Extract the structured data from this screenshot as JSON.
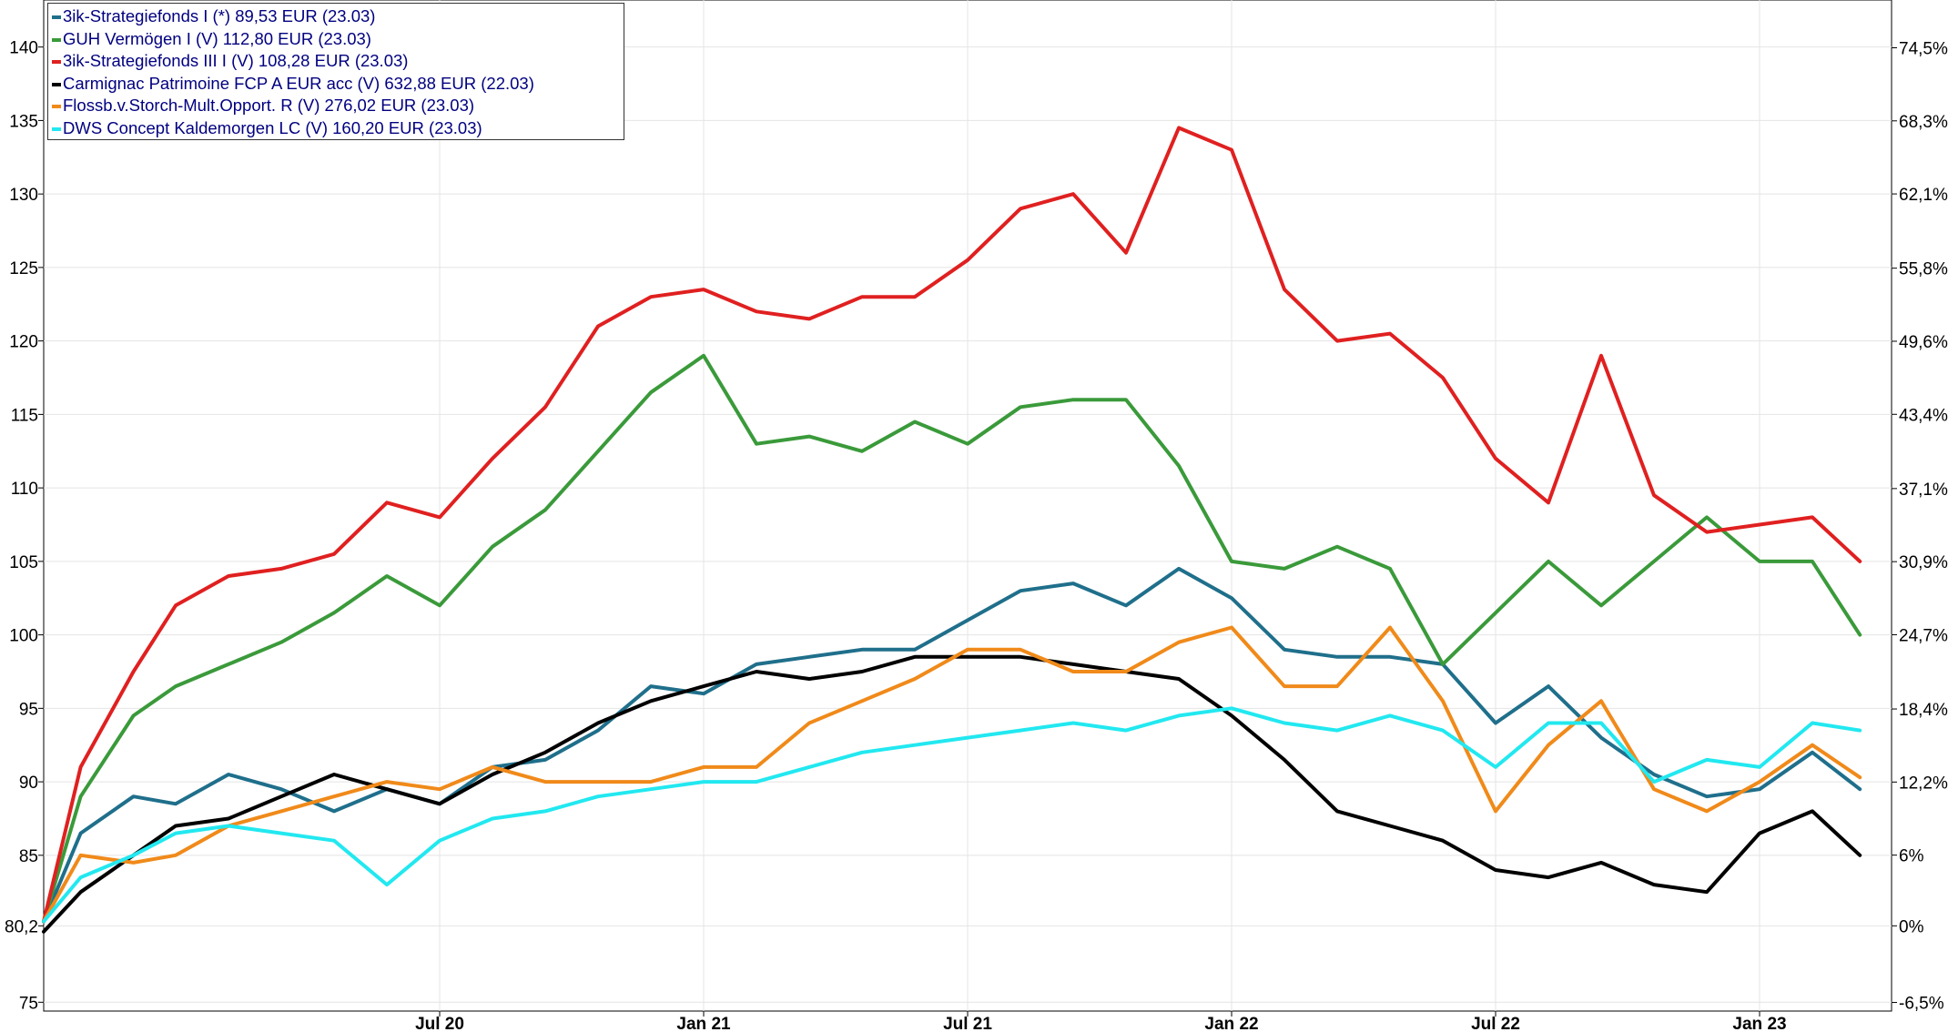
{
  "chart_data": {
    "type": "line",
    "title": "",
    "xlabel": "",
    "ylabel": "",
    "x_tick_labels": [
      "Jul 20",
      "Jan 21",
      "Jul 21",
      "Jan 22",
      "Jul 22",
      "Jan 23"
    ],
    "x_ticks": [
      2020.5,
      2021.0,
      2021.5,
      2022.0,
      2022.5,
      2023.0
    ],
    "xlim": [
      2019.75,
      2023.25
    ],
    "ylim": [
      74.4,
      143.2
    ],
    "y_left_ticks": [
      140,
      135,
      130,
      125,
      120,
      115,
      110,
      105,
      100,
      95,
      90,
      85,
      80.2,
      75
    ],
    "y_left_tick_labels": [
      "140",
      "135",
      "130",
      "125",
      "120",
      "115",
      "110",
      "105",
      "100",
      "95",
      "90",
      "85",
      "80,2",
      "75"
    ],
    "y_right_ticks": [
      74.5,
      68.3,
      62.1,
      55.8,
      49.6,
      43.4,
      37.1,
      30.9,
      24.7,
      18.4,
      12.2,
      6,
      0,
      -6.5
    ],
    "y_right_tick_labels": [
      "74,5%",
      "68,3%",
      "62,1%",
      "55,8%",
      "49,6%",
      "43,4%",
      "37,1%",
      "30,9%",
      "24,7%",
      "18,4%",
      "12,2%",
      "6%",
      "0%",
      "-6,5%"
    ],
    "y_right_base": 80.2,
    "grid": true,
    "legend_position": "top-left",
    "series": [
      {
        "name": "3ik-Strategiefonds I (*) 89,53 EUR (23.03)",
        "color": "#1f6f8b",
        "x": [
          2019.75,
          2019.82,
          2019.92,
          2020.0,
          2020.1,
          2020.2,
          2020.3,
          2020.4,
          2020.5,
          2020.6,
          2020.7,
          2020.8,
          2020.9,
          2021.0,
          2021.1,
          2021.2,
          2021.3,
          2021.4,
          2021.5,
          2021.6,
          2021.7,
          2021.8,
          2021.9,
          2022.0,
          2022.1,
          2022.2,
          2022.3,
          2022.4,
          2022.5,
          2022.6,
          2022.7,
          2022.8,
          2022.9,
          2023.0,
          2023.1,
          2023.19
        ],
        "y": [
          80.5,
          86.5,
          89.0,
          88.5,
          90.5,
          89.5,
          88.0,
          89.5,
          88.5,
          91.0,
          91.5,
          93.5,
          96.5,
          96.0,
          98.0,
          98.5,
          99.0,
          99.0,
          101.0,
          103.0,
          103.5,
          102.0,
          104.5,
          102.5,
          99.0,
          98.5,
          98.5,
          98.0,
          94.0,
          96.5,
          93.0,
          90.5,
          89.0,
          89.5,
          92.0,
          89.5
        ]
      },
      {
        "name": "GUH Vermögen I (V) 112,80 EUR (23.03)",
        "color": "#3a9a3a",
        "x": [
          2019.75,
          2019.82,
          2019.92,
          2020.0,
          2020.1,
          2020.2,
          2020.3,
          2020.4,
          2020.5,
          2020.6,
          2020.7,
          2020.8,
          2020.9,
          2021.0,
          2021.1,
          2021.2,
          2021.3,
          2021.4,
          2021.5,
          2021.6,
          2021.7,
          2021.8,
          2021.9,
          2022.0,
          2022.1,
          2022.2,
          2022.3,
          2022.4,
          2022.5,
          2022.6,
          2022.7,
          2022.8,
          2022.9,
          2023.0,
          2023.1,
          2023.19
        ],
        "y": [
          80.5,
          89.0,
          94.5,
          96.5,
          98.0,
          99.5,
          101.5,
          104.0,
          102.0,
          106.0,
          108.5,
          112.5,
          116.5,
          119.0,
          113.0,
          113.5,
          112.5,
          114.5,
          113.0,
          115.5,
          116.0,
          116.0,
          111.5,
          105.0,
          104.5,
          106.0,
          104.5,
          98.0,
          101.5,
          105.0,
          102.0,
          105.0,
          108.0,
          105.0,
          105.0,
          100.0
        ]
      },
      {
        "name": "3ik-Strategiefonds III I (V) 108,28 EUR (23.03)",
        "color": "#e02020",
        "x": [
          2019.75,
          2019.82,
          2019.92,
          2020.0,
          2020.1,
          2020.2,
          2020.3,
          2020.4,
          2020.5,
          2020.6,
          2020.7,
          2020.8,
          2020.9,
          2021.0,
          2021.1,
          2021.2,
          2021.3,
          2021.4,
          2021.5,
          2021.6,
          2021.7,
          2021.8,
          2021.9,
          2022.0,
          2022.1,
          2022.2,
          2022.3,
          2022.4,
          2022.5,
          2022.6,
          2022.7,
          2022.8,
          2022.9,
          2023.0,
          2023.1,
          2023.19
        ],
        "y": [
          80.5,
          91.0,
          97.5,
          102.0,
          104.0,
          104.5,
          105.5,
          109.0,
          108.0,
          112.0,
          115.5,
          121.0,
          123.0,
          123.5,
          122.0,
          121.5,
          123.0,
          123.0,
          125.5,
          129.0,
          130.0,
          126.0,
          134.5,
          133.0,
          123.5,
          120.0,
          120.5,
          117.5,
          112.0,
          109.0,
          119.0,
          109.5,
          107.0,
          107.5,
          108.0,
          105.0
        ]
      },
      {
        "name": "Carmignac Patrimoine FCP A EUR acc (V) 632,88 EUR (22.03)",
        "color": "#000000",
        "x": [
          2019.75,
          2019.82,
          2019.92,
          2020.0,
          2020.1,
          2020.2,
          2020.3,
          2020.4,
          2020.5,
          2020.6,
          2020.7,
          2020.8,
          2020.9,
          2021.0,
          2021.1,
          2021.2,
          2021.3,
          2021.4,
          2021.5,
          2021.6,
          2021.7,
          2021.8,
          2021.9,
          2022.0,
          2022.1,
          2022.2,
          2022.3,
          2022.4,
          2022.5,
          2022.6,
          2022.7,
          2022.8,
          2022.9,
          2023.0,
          2023.1,
          2023.19
        ],
        "y": [
          79.8,
          82.5,
          85.0,
          87.0,
          87.5,
          89.0,
          90.5,
          89.5,
          88.5,
          90.5,
          92.0,
          94.0,
          95.5,
          96.5,
          97.5,
          97.0,
          97.5,
          98.5,
          98.5,
          98.5,
          98.0,
          97.5,
          97.0,
          94.5,
          91.5,
          88.0,
          87.0,
          86.0,
          84.0,
          83.5,
          84.5,
          83.0,
          82.5,
          86.5,
          88.0,
          85.0
        ]
      },
      {
        "name": "Flossb.v.Storch-Mult.Opport. R (V) 276,02 EUR (23.03)",
        "color": "#f08a1a",
        "x": [
          2019.75,
          2019.82,
          2019.92,
          2020.0,
          2020.1,
          2020.2,
          2020.3,
          2020.4,
          2020.5,
          2020.6,
          2020.7,
          2020.8,
          2020.9,
          2021.0,
          2021.1,
          2021.2,
          2021.3,
          2021.4,
          2021.5,
          2021.6,
          2021.7,
          2021.8,
          2021.9,
          2022.0,
          2022.1,
          2022.2,
          2022.3,
          2022.4,
          2022.5,
          2022.6,
          2022.7,
          2022.8,
          2022.9,
          2023.0,
          2023.1,
          2023.19
        ],
        "y": [
          80.5,
          85.0,
          84.5,
          85.0,
          87.0,
          88.0,
          89.0,
          90.0,
          89.5,
          91.0,
          90.0,
          90.0,
          90.0,
          91.0,
          91.0,
          94.0,
          95.5,
          97.0,
          99.0,
          99.0,
          97.5,
          97.5,
          99.5,
          100.5,
          96.5,
          96.5,
          100.5,
          95.5,
          88.0,
          92.5,
          95.5,
          89.5,
          88.0,
          90.0,
          92.5,
          90.3
        ]
      },
      {
        "name": "DWS Concept Kaldemorgen LC (V) 160,20 EUR (23.03)",
        "color": "#22e8f0",
        "x": [
          2019.75,
          2019.82,
          2019.92,
          2020.0,
          2020.1,
          2020.2,
          2020.3,
          2020.4,
          2020.5,
          2020.6,
          2020.7,
          2020.8,
          2020.9,
          2021.0,
          2021.1,
          2021.2,
          2021.3,
          2021.4,
          2021.5,
          2021.6,
          2021.7,
          2021.8,
          2021.9,
          2022.0,
          2022.1,
          2022.2,
          2022.3,
          2022.4,
          2022.5,
          2022.6,
          2022.7,
          2022.8,
          2022.9,
          2023.0,
          2023.1,
          2023.19
        ],
        "y": [
          80.5,
          83.5,
          85.0,
          86.5,
          87.0,
          86.5,
          86.0,
          83.0,
          86.0,
          87.5,
          88.0,
          89.0,
          89.5,
          90.0,
          90.0,
          91.0,
          92.0,
          92.5,
          93.0,
          93.5,
          94.0,
          93.5,
          94.5,
          95.0,
          94.0,
          93.5,
          94.5,
          93.5,
          91.0,
          94.0,
          94.0,
          90.0,
          91.5,
          91.0,
          94.0,
          93.5
        ]
      }
    ]
  }
}
